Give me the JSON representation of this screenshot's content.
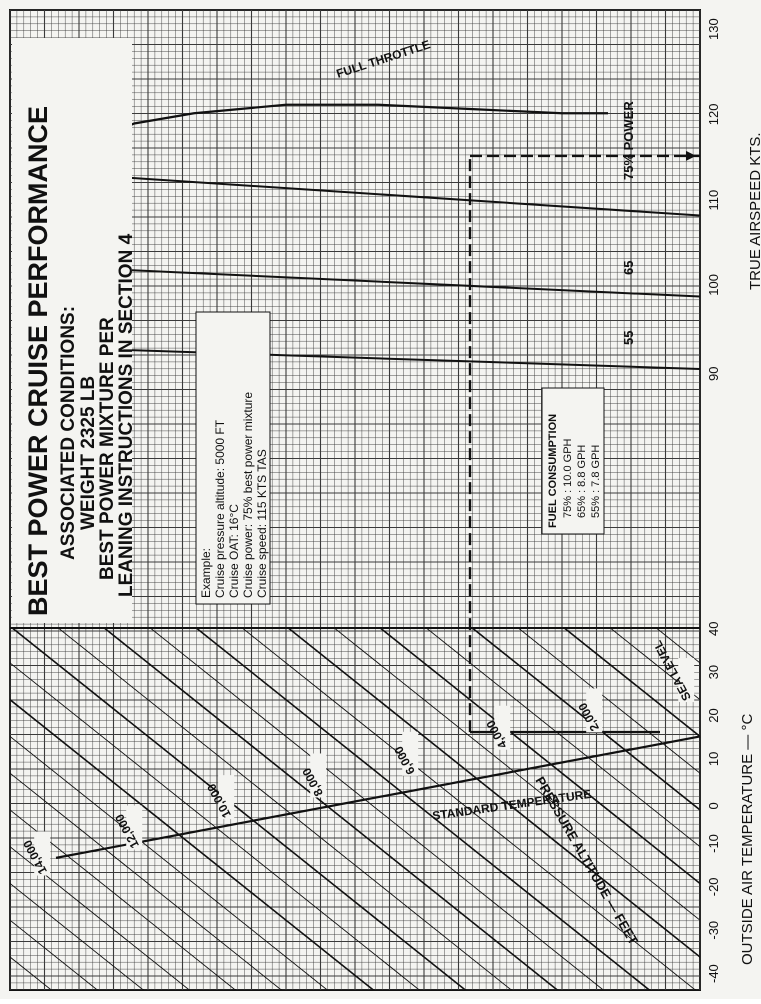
{
  "chart_data": {
    "type": "line",
    "title": "BEST POWER CRUISE PERFORMANCE",
    "subtitle": [
      "ASSOCIATED CONDITIONS:",
      "WEIGHT   2325 LB",
      "BEST POWER MIXTURE PER",
      "LEANING INSTRUCTIONS IN SECTION 4"
    ],
    "left_panel": {
      "xlabel": "OUTSIDE AIR TEMPERATURE — °C",
      "x_ticks": [
        "-40",
        "-30",
        "-20",
        "-10",
        "0",
        "10",
        "20",
        "30",
        "40"
      ],
      "xlim": [
        -40,
        40
      ],
      "curves_label": "PRESSURE ALTITUDE — FEET",
      "altitude_lines_ft": [
        0,
        2000,
        4000,
        6000,
        8000,
        10000,
        12000,
        14000
      ],
      "altitude_labels": [
        "SEA LEVEL",
        "2,000",
        "4,000",
        "6,000",
        "8,000",
        "10,000",
        "12,000",
        "14,000"
      ],
      "standard_temperature_label": "STANDARD TEMPERATURE",
      "standard_temperature": [
        {
          "altitude_ft": 0,
          "oat_c": 15
        },
        {
          "altitude_ft": 14000,
          "oat_c": -13
        }
      ]
    },
    "right_panel": {
      "xlabel": "TRUE AIRSPEED KTS.",
      "x_ticks": [
        "90",
        "100",
        "110",
        "120",
        "130"
      ],
      "xlim": [
        90,
        130
      ],
      "full_throttle_label": "FULL THROTTLE",
      "power_label_suffix": "POWER",
      "power_lines": [
        {
          "name": "55",
          "points": [
            {
              "tas": 90.0,
              "altitude_ft": 0
            },
            {
              "tas": 92.5,
              "altitude_ft": 14000
            }
          ]
        },
        {
          "name": "65",
          "points": [
            {
              "tas": 98.5,
              "altitude_ft": 0
            },
            {
              "tas": 102.0,
              "altitude_ft": 14000
            }
          ]
        },
        {
          "name": "75%",
          "points": [
            {
              "tas": 108.0,
              "altitude_ft": 0
            },
            {
              "tas": 113.0,
              "altitude_ft": 14000
            }
          ]
        }
      ],
      "full_throttle": [
        {
          "tas": 112.0,
          "altitude_ft": 14500
        },
        {
          "tas": 116.0,
          "altitude_ft": 13500
        },
        {
          "tas": 118.8,
          "altitude_ft": 12300
        },
        {
          "tas": 120.0,
          "altitude_ft": 11000
        },
        {
          "tas": 121.0,
          "altitude_ft": 9000
        },
        {
          "tas": 121.0,
          "altitude_ft": 7000
        },
        {
          "tas": 120.5,
          "altitude_ft": 5000
        },
        {
          "tas": 120.0,
          "altitude_ft": 3000
        },
        {
          "tas": 120.0,
          "altitude_ft": 2000
        }
      ]
    },
    "example_box": {
      "heading": "Example:",
      "lines": [
        "Cruise pressure altitude:   5000 FT",
        "Cruise OAT:   16°C",
        "Cruise power:   75% best power mixture",
        "Cruise speed:   115 KTS TAS"
      ]
    },
    "fuel_box": {
      "heading": "FUEL CONSUMPTION",
      "lines": [
        "75%  :  10.0 GPH",
        "65%  :   8.8 GPH",
        "55%  :   7.8 GPH"
      ]
    },
    "example_path": {
      "oat_c": 16,
      "altitude_ft": 5000,
      "tas": 115
    }
  },
  "colors": {
    "ink": "#111111",
    "paper": "#f4f4f1",
    "grid": "#3a3a3a"
  }
}
